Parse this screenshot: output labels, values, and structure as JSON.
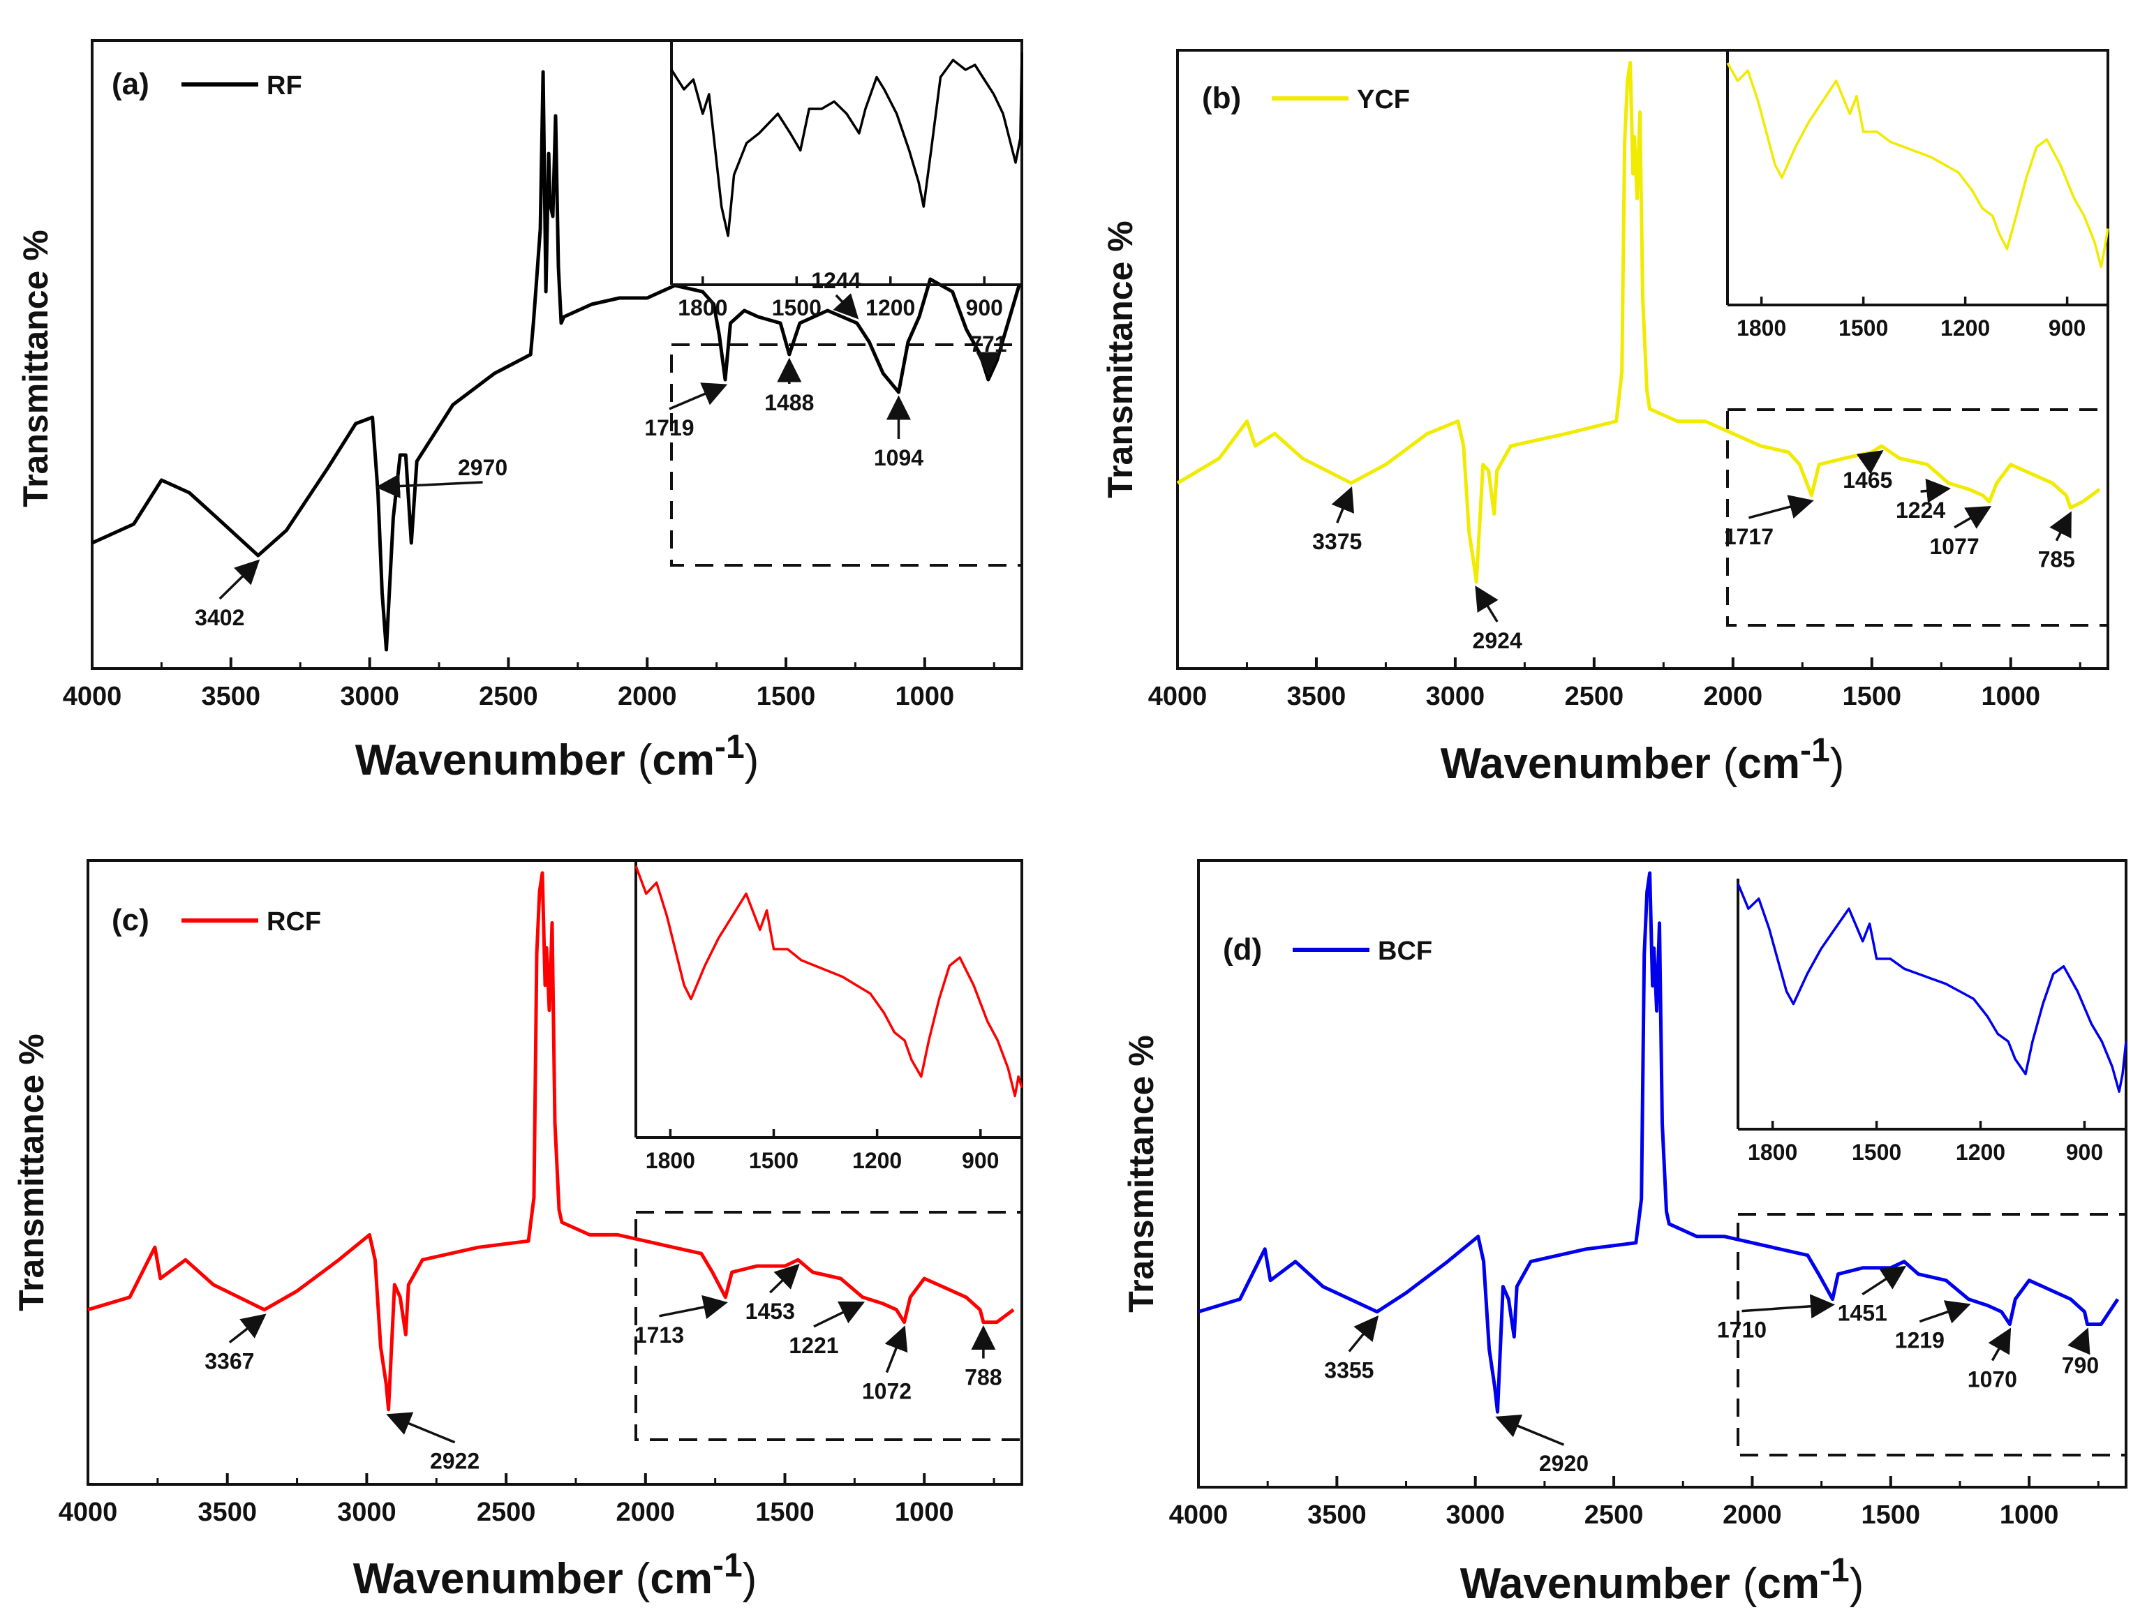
{
  "figure": {
    "x_axis_label": "Wavenumber",
    "unit_open": "(",
    "unit_base": "cm",
    "unit_exp": "-1",
    "unit_close": ")",
    "y_axis_label": "Transmittance %"
  },
  "chart_data": [
    {
      "type": "line",
      "panel": "(a)",
      "legend": "RF",
      "color": "#000000",
      "xlabel": "Wavenumber (cm-1)",
      "ylabel": "Transmittance %",
      "xlim": [
        4000,
        650
      ],
      "ylim": [
        0,
        100
      ],
      "x_ticks": [
        "4000",
        "3500",
        "3000",
        "2500",
        "2000",
        "1500",
        "1000"
      ],
      "series": [
        {
          "name": "RF",
          "x": [
            4000,
            3850,
            3750,
            3650,
            3550,
            3402,
            3300,
            3150,
            3050,
            2990,
            2970,
            2955,
            2940,
            2915,
            2890,
            2870,
            2850,
            2830,
            2700,
            2550,
            2420,
            2410,
            2400,
            2385,
            2375,
            2365,
            2355,
            2350,
            2340,
            2330,
            2320,
            2310,
            2300,
            2200,
            2100,
            2000,
            1900,
            1800,
            1760,
            1740,
            1719,
            1700,
            1650,
            1600,
            1520,
            1488,
            1450,
            1350,
            1244,
            1200,
            1150,
            1094,
            1060,
            1020,
            980,
            900,
            850,
            800,
            771,
            740,
            700,
            660
          ],
          "y": [
            20,
            23,
            30,
            28,
            24,
            18,
            22,
            32,
            39,
            40,
            28,
            12,
            3,
            24,
            34,
            34,
            20,
            33,
            42,
            47,
            50,
            55,
            61,
            70,
            95,
            60,
            82,
            74,
            72,
            88,
            64,
            55,
            56,
            58,
            59,
            59,
            61,
            60,
            58,
            53,
            46,
            55,
            57,
            56,
            55,
            50,
            55,
            57,
            55,
            52,
            47,
            44,
            52,
            56,
            62,
            60,
            54,
            50,
            46,
            49,
            55,
            61
          ]
        }
      ],
      "annotations": [
        "3402",
        "2970",
        "1719",
        "1488",
        "1244",
        "1094",
        "771"
      ],
      "inset": {
        "x_ticks": [
          "1800",
          "1500",
          "1200",
          "900"
        ],
        "xlim": [
          1900,
          780
        ],
        "x": [
          1900,
          1860,
          1830,
          1800,
          1780,
          1760,
          1740,
          1719,
          1700,
          1660,
          1620,
          1560,
          1520,
          1488,
          1460,
          1420,
          1380,
          1340,
          1300,
          1280,
          1244,
          1220,
          1180,
          1140,
          1110,
          1094,
          1070,
          1040,
          1000,
          960,
          930,
          900,
          870,
          840,
          800,
          785,
          780
        ],
        "y": [
          88,
          80,
          84,
          70,
          78,
          55,
          32,
          20,
          45,
          58,
          62,
          70,
          62,
          55,
          72,
          72,
          75,
          70,
          62,
          72,
          85,
          80,
          70,
          55,
          42,
          32,
          55,
          85,
          92,
          88,
          90,
          84,
          78,
          70,
          50,
          60,
          95
        ]
      }
    },
    {
      "type": "line",
      "panel": "(b)",
      "legend": "YCF",
      "color": "#f0eb00",
      "xlabel": "Wavenumber (cm-1)",
      "ylabel": "Transmittance %",
      "xlim": [
        4000,
        650
      ],
      "ylim": [
        0,
        100
      ],
      "x_ticks": [
        "4000",
        "3500",
        "3000",
        "2500",
        "2000",
        "1500",
        "1000"
      ],
      "series": [
        {
          "name": "YCF",
          "x": [
            4000,
            3850,
            3750,
            3720,
            3650,
            3550,
            3375,
            3250,
            3100,
            2990,
            2970,
            2950,
            2930,
            2924,
            2900,
            2880,
            2860,
            2850,
            2800,
            2600,
            2420,
            2400,
            2390,
            2380,
            2370,
            2360,
            2355,
            2345,
            2335,
            2325,
            2310,
            2300,
            2200,
            2100,
            2000,
            1900,
            1800,
            1760,
            1717,
            1690,
            1600,
            1500,
            1465,
            1400,
            1300,
            1224,
            1150,
            1100,
            1077,
            1050,
            1000,
            950,
            850,
            800,
            785,
            740,
            680
          ],
          "y": [
            30,
            34,
            40,
            36,
            38,
            34,
            30,
            33,
            38,
            40,
            36,
            22,
            16,
            14,
            33,
            32,
            25,
            32,
            36,
            38,
            40,
            48,
            85,
            95,
            98,
            80,
            86,
            76,
            90,
            60,
            45,
            42,
            40,
            40,
            38,
            36,
            35,
            33,
            28,
            33,
            34,
            35,
            36,
            34,
            33,
            30,
            29,
            28,
            27,
            30,
            33,
            32,
            30,
            28,
            26,
            27,
            29
          ]
        }
      ],
      "annotations": [
        "3375",
        "2924",
        "1717",
        "1465",
        "1224",
        "1077",
        "785"
      ],
      "inset": {
        "x_ticks": [
          "1800",
          "1500",
          "1200",
          "900"
        ],
        "xlim": [
          1900,
          780
        ],
        "x": [
          1900,
          1870,
          1840,
          1810,
          1790,
          1760,
          1740,
          1700,
          1660,
          1620,
          1580,
          1540,
          1520,
          1500,
          1460,
          1420,
          1380,
          1340,
          1300,
          1260,
          1220,
          1180,
          1150,
          1120,
          1100,
          1077,
          1050,
          1020,
          990,
          960,
          920,
          880,
          850,
          820,
          800,
          790,
          780
        ],
        "y": [
          95,
          88,
          92,
          80,
          70,
          55,
          50,
          62,
          72,
          80,
          88,
          75,
          82,
          68,
          68,
          64,
          62,
          60,
          58,
          55,
          52,
          45,
          38,
          35,
          28,
          22,
          35,
          50,
          62,
          65,
          55,
          42,
          35,
          25,
          15,
          22,
          30
        ]
      }
    },
    {
      "type": "line",
      "panel": "(c)",
      "legend": "RCF",
      "color": "#ff0000",
      "xlabel": "Wavenumber (cm-1)",
      "ylabel": "Transmittance %",
      "xlim": [
        4000,
        650
      ],
      "ylim": [
        0,
        100
      ],
      "x_ticks": [
        "4000",
        "3500",
        "3000",
        "2500",
        "2000",
        "1500",
        "1000"
      ],
      "series": [
        {
          "name": "RCF",
          "x": [
            4000,
            3850,
            3760,
            3740,
            3650,
            3550,
            3367,
            3250,
            3100,
            2990,
            2970,
            2950,
            2930,
            2922,
            2900,
            2880,
            2860,
            2850,
            2800,
            2600,
            2420,
            2400,
            2390,
            2380,
            2370,
            2360,
            2355,
            2345,
            2335,
            2325,
            2310,
            2300,
            2200,
            2100,
            2000,
            1900,
            1800,
            1760,
            1713,
            1690,
            1600,
            1500,
            1453,
            1400,
            1300,
            1221,
            1150,
            1100,
            1072,
            1050,
            1000,
            950,
            850,
            800,
            788,
            740,
            680
          ],
          "y": [
            28,
            30,
            38,
            33,
            36,
            32,
            28,
            31,
            36,
            40,
            36,
            22,
            16,
            12,
            32,
            30,
            24,
            32,
            36,
            38,
            39,
            46,
            85,
            95,
            98,
            80,
            86,
            76,
            90,
            58,
            44,
            42,
            40,
            40,
            39,
            38,
            37,
            34,
            30,
            34,
            35,
            35,
            36,
            34,
            33,
            30,
            29,
            28,
            26,
            30,
            33,
            32,
            30,
            28,
            26,
            26,
            28
          ]
        }
      ],
      "annotations": [
        "3367",
        "2922",
        "1713",
        "1453",
        "1221",
        "1072",
        "788"
      ],
      "inset": {
        "x_ticks": [
          "1800",
          "1500",
          "1200",
          "900"
        ],
        "xlim": [
          1900,
          780
        ],
        "x": [
          1900,
          1870,
          1840,
          1810,
          1790,
          1760,
          1740,
          1700,
          1660,
          1620,
          1580,
          1540,
          1520,
          1500,
          1460,
          1420,
          1380,
          1340,
          1300,
          1260,
          1220,
          1180,
          1150,
          1120,
          1100,
          1072,
          1050,
          1020,
          990,
          960,
          920,
          880,
          850,
          820,
          800,
          790,
          780
        ],
        "y": [
          98,
          88,
          92,
          80,
          70,
          55,
          50,
          62,
          72,
          80,
          88,
          75,
          82,
          68,
          68,
          64,
          62,
          60,
          58,
          55,
          52,
          45,
          38,
          35,
          28,
          22,
          35,
          50,
          62,
          65,
          55,
          42,
          35,
          25,
          15,
          22,
          18
        ]
      }
    },
    {
      "type": "line",
      "panel": "(d)",
      "legend": "BCF",
      "color": "#0000ee",
      "xlabel": "Wavenumber (cm-1)",
      "ylabel": "Transmittance %",
      "xlim": [
        4000,
        650
      ],
      "ylim": [
        0,
        100
      ],
      "x_ticks": [
        "4000",
        "3500",
        "3000",
        "2500",
        "2000",
        "1500",
        "1000"
      ],
      "series": [
        {
          "name": "BCF",
          "x": [
            4000,
            3850,
            3760,
            3740,
            3650,
            3550,
            3355,
            3250,
            3100,
            2990,
            2970,
            2950,
            2930,
            2920,
            2900,
            2880,
            2860,
            2850,
            2800,
            2600,
            2420,
            2400,
            2390,
            2380,
            2370,
            2360,
            2355,
            2345,
            2335,
            2325,
            2310,
            2300,
            2200,
            2100,
            2000,
            1900,
            1800,
            1760,
            1710,
            1690,
            1600,
            1500,
            1451,
            1400,
            1300,
            1219,
            1150,
            1100,
            1070,
            1050,
            1000,
            950,
            850,
            800,
            790,
            740,
            680
          ],
          "y": [
            28,
            30,
            38,
            33,
            36,
            32,
            28,
            31,
            36,
            40,
            36,
            22,
            16,
            12,
            32,
            30,
            24,
            32,
            36,
            38,
            39,
            46,
            85,
            95,
            98,
            80,
            86,
            76,
            90,
            58,
            44,
            42,
            40,
            40,
            39,
            38,
            37,
            34,
            30,
            34,
            35,
            35,
            36,
            34,
            33,
            30,
            29,
            28,
            26,
            30,
            33,
            32,
            30,
            28,
            26,
            26,
            30
          ]
        }
      ],
      "annotations": [
        "3355",
        "2920",
        "1710",
        "1451",
        "1219",
        "1070",
        "790"
      ],
      "inset": {
        "x_ticks": [
          "1800",
          "1500",
          "1200",
          "900"
        ],
        "xlim": [
          1900,
          780
        ],
        "x": [
          1900,
          1870,
          1840,
          1810,
          1790,
          1760,
          1740,
          1700,
          1660,
          1620,
          1580,
          1540,
          1520,
          1500,
          1460,
          1420,
          1380,
          1340,
          1300,
          1260,
          1220,
          1180,
          1150,
          1120,
          1100,
          1070,
          1050,
          1020,
          990,
          960,
          920,
          880,
          850,
          820,
          800,
          790,
          780
        ],
        "y": [
          98,
          88,
          92,
          80,
          70,
          55,
          50,
          62,
          72,
          80,
          88,
          75,
          82,
          68,
          68,
          64,
          62,
          60,
          58,
          55,
          52,
          45,
          38,
          35,
          28,
          22,
          35,
          50,
          62,
          65,
          55,
          42,
          35,
          25,
          15,
          22,
          35
        ]
      }
    }
  ]
}
